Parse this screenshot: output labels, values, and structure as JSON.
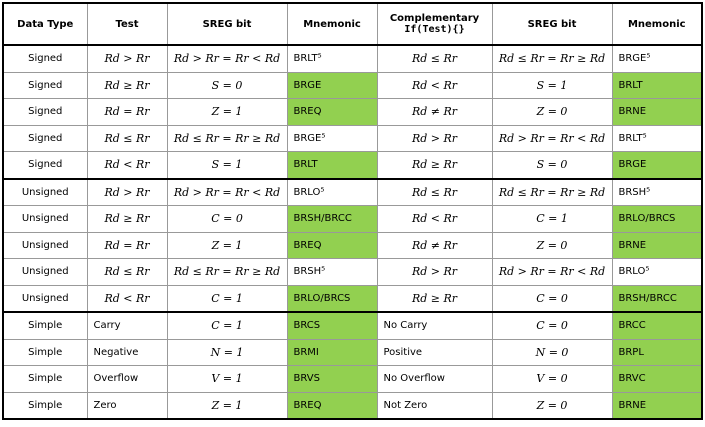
{
  "table": {
    "header": [
      "Data Type",
      "Test",
      "SREG bit",
      "Mnemonic",
      [
        "Complementary",
        "If(Test){}"
      ],
      "SREG bit",
      "Mnemonic"
    ],
    "rows": [
      [
        "Signed",
        "Rd > Rr",
        "Rd > Rr = Rr < Rd",
        "BRLT⁵",
        "Rd ≤ Rr",
        "Rd ≤ Rr = Rr ≥ Rd",
        "BRGE⁵"
      ],
      [
        "Signed",
        "Rd ≥ Rr",
        "S = 0",
        "BRGE",
        "Rd < Rr",
        "S = 1",
        "BRLT"
      ],
      [
        "Signed",
        "Rd = Rr",
        "Z = 1",
        "BREQ",
        "Rd ≠ Rr",
        "Z = 0",
        "BRNE"
      ],
      [
        "Signed",
        "Rd ≤ Rr",
        "Rd ≤ Rr = Rr ≥ Rd",
        "BRGE⁵",
        "Rd > Rr",
        "Rd > Rr = Rr < Rd",
        "BRLT⁵"
      ],
      [
        "Signed",
        "Rd < Rr",
        "S = 1",
        "BRLT",
        "Rd ≥ Rr",
        "S = 0",
        "BRGE"
      ],
      [
        "Unsigned",
        "Rd > Rr",
        "Rd > Rr = Rr < Rd",
        "BRLO⁵",
        "Rd ≤ Rr",
        "Rd ≤ Rr = Rr ≥ Rd",
        "BRSH⁵"
      ],
      [
        "Unsigned",
        "Rd ≥ Rr",
        "C = 0",
        "BRSH/BRCC",
        "Rd < Rr",
        "C = 1",
        "BRLO/BRCS"
      ],
      [
        "Unsigned",
        "Rd = Rr",
        "Z = 1",
        "BREQ",
        "Rd ≠ Rr",
        "Z = 0",
        "BRNE"
      ],
      [
        "Unsigned",
        "Rd ≤ Rr",
        "Rd ≤ Rr = Rr ≥ Rd",
        "BRSH⁵",
        "Rd > Rr",
        "Rd > Rr = Rr < Rd",
        "BRLO⁵"
      ],
      [
        "Unsigned",
        "Rd < Rr",
        "C = 1",
        "BRLO/BRCS",
        "Rd ≥ Rr",
        "C = 0",
        "BRSH/BRCC"
      ],
      [
        "Simple",
        "Carry",
        "C = 1",
        "BRCS",
        "No Carry",
        "C = 0",
        "BRCC"
      ],
      [
        "Simple",
        "Negative",
        "N = 1",
        "BRMI",
        "Positive",
        "N = 0",
        "BRPL"
      ],
      [
        "Simple",
        "Overflow",
        "V = 1",
        "BRVS",
        "No Overflow",
        "V = 0",
        "BRVC"
      ],
      [
        "Simple",
        "Zero",
        "Z = 1",
        "BREQ",
        "Not Zero",
        "Z = 0",
        "BRNE"
      ]
    ]
  }
}
